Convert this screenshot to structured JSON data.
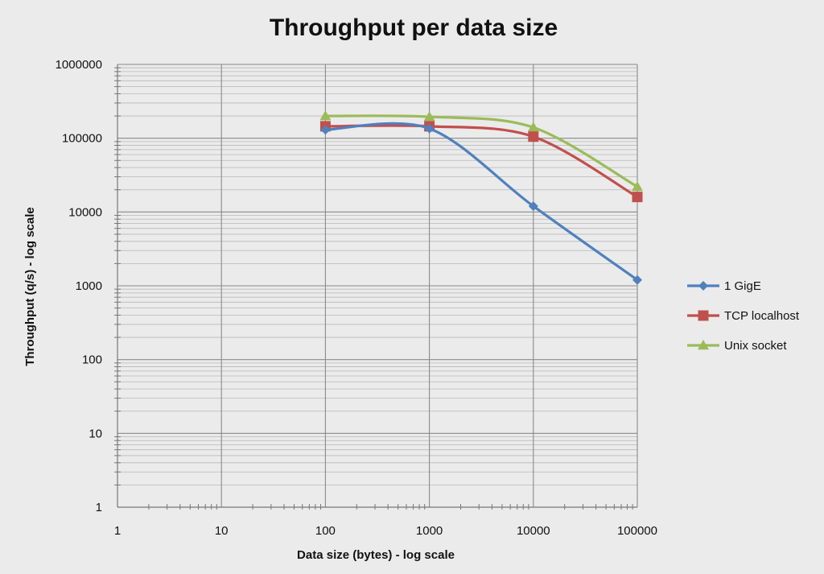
{
  "chart_data": {
    "type": "line",
    "title": "Throughput per data size",
    "xlabel": "Data size (bytes) - log scale",
    "ylabel": "Throughput (q/s) - log scale",
    "x_scale": "log",
    "y_scale": "log",
    "xlim": [
      1,
      100000
    ],
    "ylim": [
      1,
      1000000
    ],
    "x_ticks": [
      "1",
      "10",
      "100",
      "1000",
      "10000",
      "100000"
    ],
    "y_ticks": [
      "1",
      "10",
      "100",
      "1000",
      "10000",
      "100000",
      "1000000"
    ],
    "grid": true,
    "legend_position": "right",
    "x": [
      100,
      1000,
      10000,
      100000
    ],
    "series": [
      {
        "name": "1 GigE",
        "values": [
          130000,
          135000,
          12000,
          1200
        ],
        "color": "#4f81bd",
        "marker": "diamond"
      },
      {
        "name": "TCP localhost",
        "values": [
          145000,
          145000,
          105000,
          16000
        ],
        "color": "#c0504d",
        "marker": "square"
      },
      {
        "name": "Unix socket",
        "values": [
          200000,
          195000,
          140000,
          22000
        ],
        "color": "#9bbb59",
        "marker": "triangle"
      }
    ]
  }
}
